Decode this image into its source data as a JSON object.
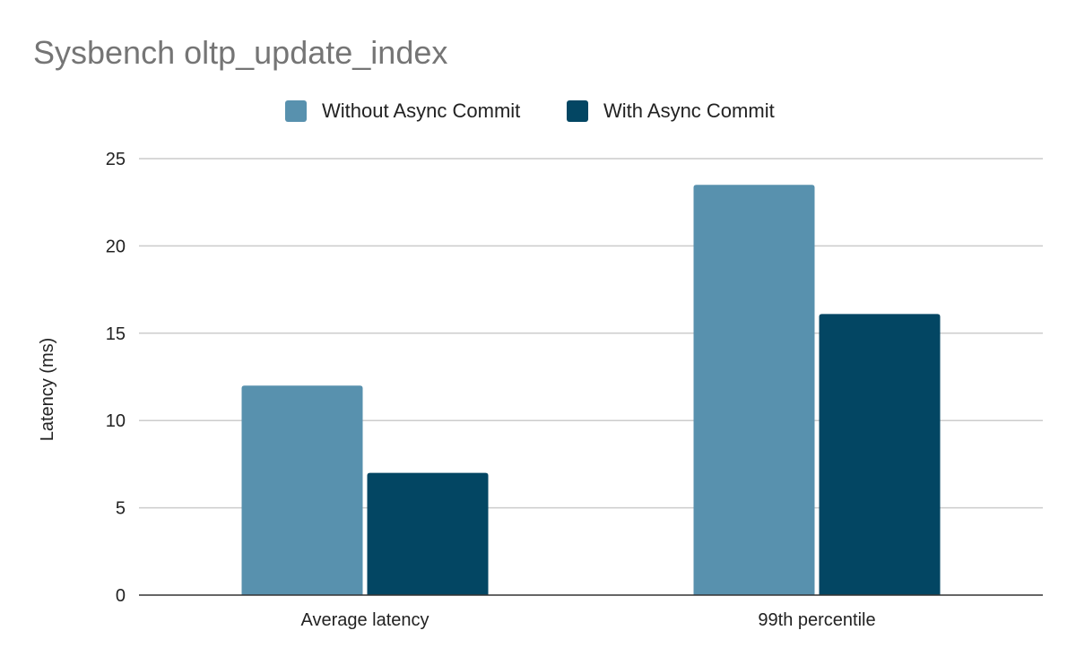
{
  "chart_data": {
    "type": "bar",
    "title": "Sysbench oltp_update_index",
    "xlabel": "",
    "ylabel": "Latency (ms)",
    "ylim": [
      0,
      25
    ],
    "yticks": [
      "0",
      "5",
      "10",
      "15",
      "20",
      "25"
    ],
    "grid": true,
    "legend_position": "top",
    "categories": [
      "Average latency",
      "99th percentile"
    ],
    "series": [
      {
        "name": "Without Async Commit",
        "color": "#5891ae",
        "values": [
          12.0,
          23.5
        ]
      },
      {
        "name": "With Async Commit",
        "color": "#034663",
        "values": [
          7.0,
          16.1
        ]
      }
    ]
  }
}
